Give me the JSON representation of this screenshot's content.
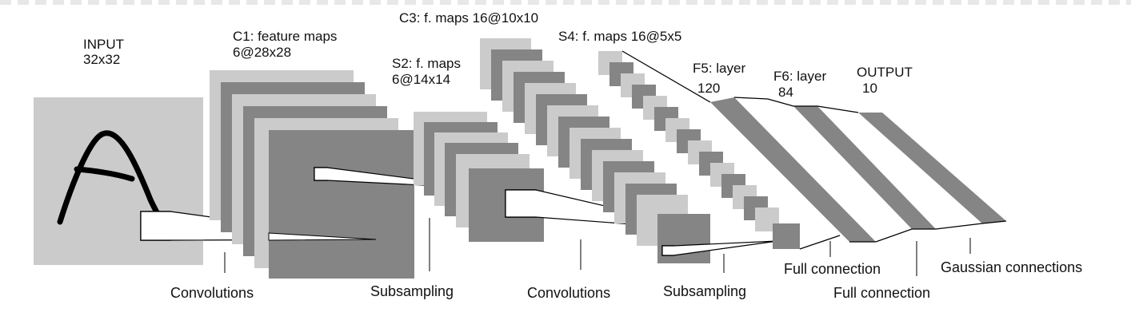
{
  "colors": {
    "light": "#cbcbcb",
    "dark": "#858585",
    "stroke": "#000000",
    "text": "#111111",
    "top_dash": "#e8e8e8"
  },
  "layers": {
    "input": {
      "name": "INPUT",
      "size": "32x32",
      "glyph": "handwritten letter A"
    },
    "c1": {
      "name": "C1: feature maps",
      "size": "6@28x28"
    },
    "s2": {
      "name": "S2: f. maps",
      "size": "6@14x14"
    },
    "c3": {
      "name": "C3: f. maps 16@10x10"
    },
    "s4": {
      "name": "S4: f. maps 16@5x5"
    },
    "f5": {
      "name": "F5:  layer",
      "size": "120"
    },
    "f6": {
      "name": "F6: layer",
      "size": "84"
    },
    "output": {
      "name": "OUTPUT",
      "size": "10"
    }
  },
  "operations": {
    "conv1": "Convolutions",
    "sub1": "Subsampling",
    "conv2": "Convolutions",
    "sub2": "Subsampling",
    "full1": "Full connection",
    "full2": "Full connection",
    "gauss": "Gaussian connections"
  }
}
